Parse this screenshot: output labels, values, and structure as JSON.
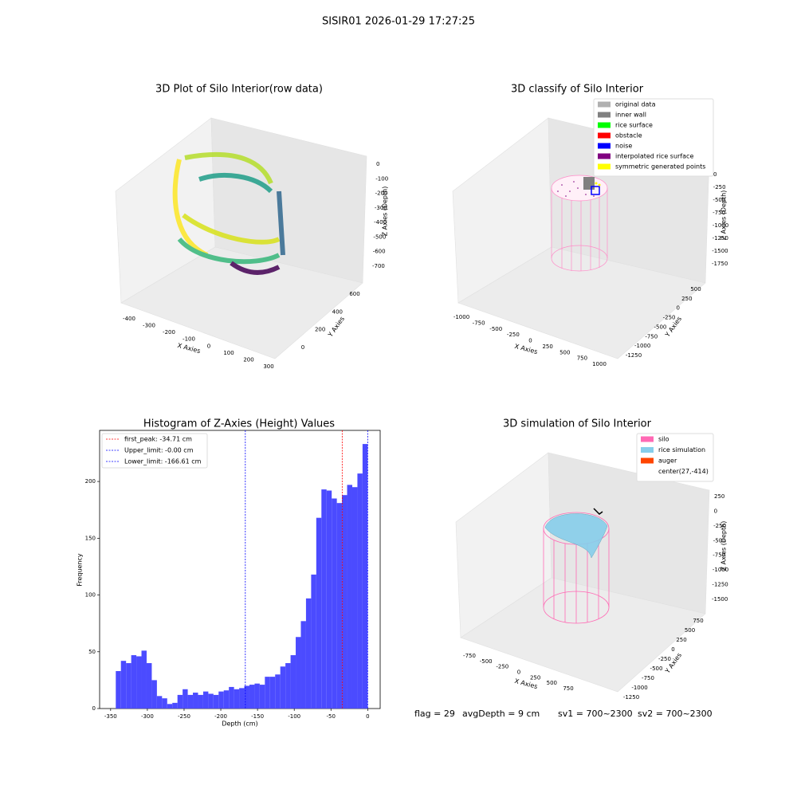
{
  "title": "SISIR01 2026-01-29 17:27:25",
  "footer": [
    "flag = 29",
    "avgDepth = 9 cm",
    "sv1 = 700~2300",
    "sv2 = 700~2300"
  ],
  "chart_data": [
    {
      "type": "scatter3d",
      "title": "3D Plot of Silo Interior(row data)",
      "x_label": "X Axies",
      "y_label": "Y Axies",
      "z_label": "Z Axies (Depth)",
      "xticks": [
        -400,
        -300,
        -200,
        -100,
        0,
        100,
        200,
        300
      ],
      "yticks": [
        0,
        200,
        400,
        600
      ],
      "zticks": [
        0,
        -100,
        -200,
        -300,
        -400,
        -500,
        -600,
        -700
      ]
    },
    {
      "type": "surface3d",
      "title": "3D classify of Silo Interior",
      "x_label": "X Axies",
      "y_label": "Y Axies",
      "z_label": "Z Axies (Depth)",
      "xticks": [
        -1000,
        -750,
        -500,
        -250,
        0,
        250,
        500,
        750,
        1000
      ],
      "yticks": [
        500,
        250,
        0,
        -250,
        -500,
        -750,
        -1000,
        -1250
      ],
      "zticks": [
        0,
        -250,
        -500,
        -750,
        -1000,
        -1250,
        -1500,
        -1750
      ],
      "series": [
        {
          "name": "original data",
          "color": "#b0b0b0"
        },
        {
          "name": "inner wall",
          "color": "#808080"
        },
        {
          "name": "rice surface",
          "color": "#00ff00"
        },
        {
          "name": "obstacle",
          "color": "#ff0000"
        },
        {
          "name": "noise",
          "color": "#0000ff"
        },
        {
          "name": "interpolated rice surface",
          "color": "#800080"
        },
        {
          "name": "symmetric generated points",
          "color": "#ffff00"
        }
      ]
    },
    {
      "type": "histogram",
      "title": "Histogram of Z-Axies (Height) Values",
      "x_label": "Depth (cm)",
      "y_label": "Frequency",
      "color": "#4b4bff",
      "bins": [
        -343,
        -336,
        -329,
        -322,
        -315,
        -308,
        -301,
        -294,
        -287,
        -280,
        -273,
        -266,
        -259,
        -252,
        -245,
        -238,
        -231,
        -224,
        -217,
        -210,
        -203,
        -196,
        -189,
        -182,
        -175,
        -168,
        -161,
        -154,
        -147,
        -140,
        -133,
        -126,
        -119,
        -112,
        -105,
        -98,
        -91,
        -84,
        -77,
        -70,
        -63,
        -56,
        -49,
        -42,
        -35,
        -28,
        -21,
        -14,
        -7,
        0
      ],
      "counts": [
        33,
        42,
        40,
        47,
        46,
        51,
        40,
        25,
        11,
        9,
        4,
        5,
        12,
        17,
        12,
        14,
        12,
        15,
        13,
        12,
        15,
        16,
        19,
        17,
        18,
        20,
        21,
        22,
        21,
        28,
        28,
        30,
        37,
        40,
        47,
        63,
        77,
        97,
        118,
        168,
        193,
        192,
        185,
        181,
        188,
        197,
        195,
        207,
        233
      ],
      "xlim": [
        -365,
        17
      ],
      "ylim": [
        0,
        245
      ],
      "xticks": [
        -350,
        -300,
        -250,
        -200,
        -150,
        -100,
        -50,
        0
      ],
      "yticks": [
        0,
        50,
        100,
        150,
        200
      ],
      "lines": [
        {
          "label": "first_peak: -34.71 cm",
          "value": -34.71,
          "color": "#ff0000"
        },
        {
          "label": "Upper_limit: -0.00 cm",
          "value": 0,
          "color": "#0000ff"
        },
        {
          "label": "Lower_limit: -166.61 cm",
          "value": -166.61,
          "color": "#0000ff"
        }
      ]
    },
    {
      "type": "surface3d",
      "title": "3D simulation of Silo Interior",
      "x_label": "X Axies",
      "y_label": "Y Axies",
      "z_label": "Z Axies (Depth)",
      "xticks": [
        -750,
        -500,
        -250,
        0,
        250,
        500,
        750
      ],
      "yticks": [
        750,
        500,
        250,
        0,
        -250,
        -500,
        -750,
        -1000,
        -1250
      ],
      "zticks": [
        250,
        0,
        -250,
        -500,
        -750,
        -1000,
        -1250,
        -1500
      ],
      "series": [
        {
          "name": "silo",
          "color": "#ff69b4"
        },
        {
          "name": "rice simulation",
          "color": "#87ceeb"
        },
        {
          "name": "auger",
          "color": "#ff4500"
        },
        {
          "name": "center(27,-414)",
          "color": "#ffffff"
        }
      ]
    }
  ]
}
